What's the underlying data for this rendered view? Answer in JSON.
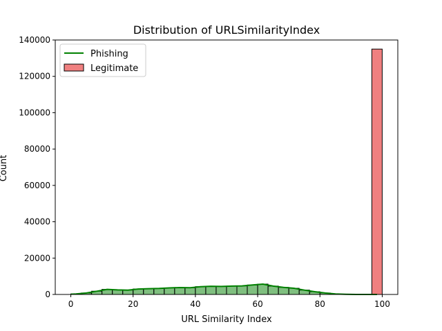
{
  "chart_data": {
    "type": "bar",
    "title": "Distribution of URLSimilarityIndex",
    "xlabel": "URL Similarity Index",
    "ylabel": "Count",
    "xlim": [
      -5,
      105
    ],
    "ylim": [
      0,
      140000
    ],
    "xticks": [
      0,
      20,
      40,
      60,
      80,
      100
    ],
    "yticks": [
      0,
      20000,
      40000,
      60000,
      80000,
      100000,
      120000,
      140000
    ],
    "xtick_labels": [
      "0",
      "20",
      "40",
      "60",
      "80",
      "100"
    ],
    "ytick_labels": [
      "0",
      "20000",
      "40000",
      "60000",
      "80000",
      "100000",
      "120000",
      "140000"
    ],
    "bin_width": 3.333,
    "bin_start": 0,
    "legend_position": "top-left",
    "series": [
      {
        "name": "Phishing",
        "color": "#008000",
        "legend_mark": "line",
        "values": [
          300,
          800,
          1800,
          2800,
          2500,
          2400,
          3000,
          3200,
          3300,
          3600,
          3800,
          3700,
          4300,
          4500,
          4400,
          4600,
          4700,
          5200,
          5700,
          4600,
          3900,
          3400,
          2400,
          1500,
          800,
          300,
          100,
          0,
          0,
          0
        ]
      },
      {
        "name": "Legitimate",
        "color": "#f08080",
        "legend_mark": "box",
        "values": [
          0,
          0,
          0,
          0,
          0,
          0,
          0,
          0,
          0,
          0,
          0,
          0,
          0,
          0,
          0,
          0,
          0,
          0,
          0,
          0,
          0,
          0,
          0,
          0,
          0,
          0,
          0,
          0,
          0,
          135000
        ]
      }
    ]
  }
}
